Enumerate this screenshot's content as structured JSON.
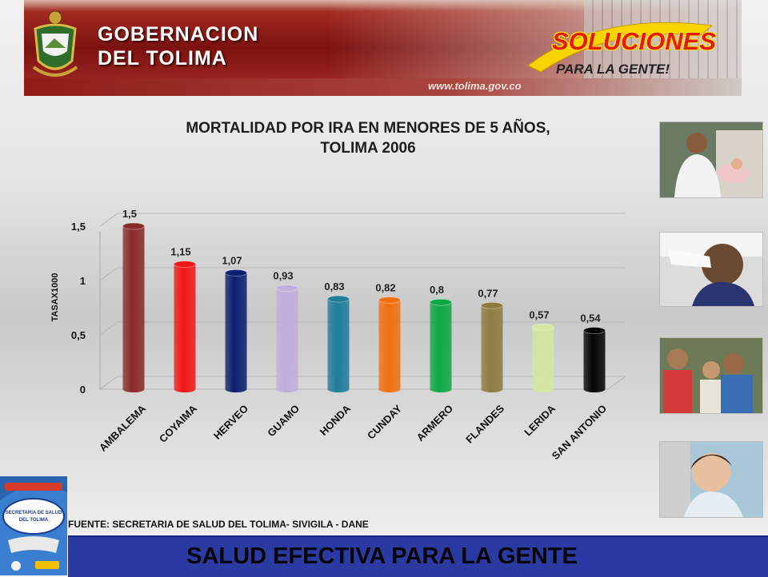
{
  "header": {
    "title_line1": "GOBERNACION",
    "title_line2": "DEL TOLIMA",
    "website": "www.tolima.gov.co",
    "slogan_main": "SOLUCIONES",
    "slogan_sub": "PARA LA GENTE!"
  },
  "chart_data": {
    "type": "bar",
    "title_line1": "MORTALIDAD POR IRA EN MENORES DE 5 AÑOS,",
    "title_line2": "TOLIMA 2006",
    "ylabel": "TASAX1000",
    "xlabel": "",
    "ylim": [
      0,
      1.5
    ],
    "yticks": [
      "0",
      "0,5",
      "1",
      "1,5"
    ],
    "ytick_values": [
      0,
      0.5,
      1,
      1.5
    ],
    "categories": [
      "AMBALEMA",
      "COYAIMA",
      "HERVEO",
      "GUAMO",
      "HONDA",
      "CUNDAY",
      "ARMERO",
      "FLANDES",
      "LERIDA",
      "SAN ANTONIO"
    ],
    "values": [
      1.5,
      1.15,
      1.07,
      0.93,
      0.83,
      0.82,
      0.8,
      0.77,
      0.57,
      0.54
    ],
    "value_labels": [
      "1,5",
      "1,15",
      "1,07",
      "0,93",
      "0,83",
      "0,82",
      "0,8",
      "0,77",
      "0,57",
      "0,54"
    ],
    "bar_colors": [
      "#8b2a2a",
      "#f01818",
      "#0b2070",
      "#c0aedc",
      "#1f7d9a",
      "#f07010",
      "#0fa844",
      "#8c7c40",
      "#d4e6a0",
      "#050505"
    ],
    "grid": true
  },
  "footer": {
    "source": "FUENTE: SECRETARIA DE SALUD DEL TOLIMA- SIVIGILA - DANE",
    "slogan": "SALUD EFECTIVA PARA LA GENTE"
  },
  "logo": {
    "line1": "SECRETARIA DE SALUD",
    "line2": "DEL TOLIMA"
  }
}
